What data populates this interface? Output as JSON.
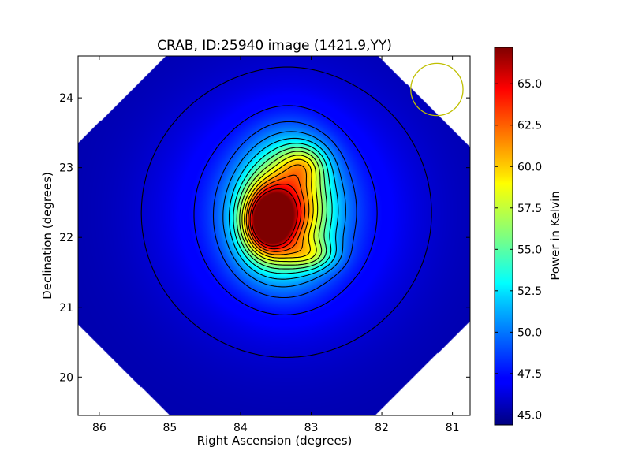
{
  "chart_data": {
    "type": "heatmap",
    "title": "CRAB, ID:25940 image (1421.9,YY)",
    "xlabel": "Right Ascension (degrees)",
    "ylabel": "Declination (degrees)",
    "colorbar_label": "Power in Kelvin",
    "colormap": "jet",
    "xlim": [
      86.3,
      80.75
    ],
    "ylim": [
      19.45,
      24.6
    ],
    "x_ticks": [
      86,
      85,
      84,
      83,
      82,
      81
    ],
    "x_tick_labels": [
      "86",
      "85",
      "84",
      "83",
      "82",
      "81"
    ],
    "y_ticks": [
      20,
      21,
      22,
      23,
      24
    ],
    "y_tick_labels": [
      "20",
      "21",
      "22",
      "23",
      "24"
    ],
    "color_range": [
      44.4,
      67.2
    ],
    "colorbar_ticks": [
      45.0,
      47.5,
      50.0,
      52.5,
      55.0,
      57.5,
      60.0,
      62.5,
      65.0
    ],
    "colorbar_tick_labels": [
      "45.0",
      "47.5",
      "50.0",
      "52.5",
      "55.0",
      "57.5",
      "60.0",
      "62.5",
      "65.0"
    ],
    "peak": {
      "ra": 83.62,
      "dec": 22.22,
      "value": 67.0
    },
    "secondary_peak": {
      "ra": 83.1,
      "dec": 23.05,
      "value": 58.5
    },
    "contour_levels": [
      46.0,
      47.5,
      49.0,
      50.5,
      52.0,
      53.5,
      55.0,
      56.5,
      58.0,
      59.5,
      61.0,
      62.5,
      64.0,
      65.5
    ],
    "beam_circle": {
      "ra": 81.22,
      "dec": 24.12,
      "radius_deg": 0.37,
      "color": "#bfbf00"
    },
    "background_value": 45.3,
    "grid": false
  }
}
